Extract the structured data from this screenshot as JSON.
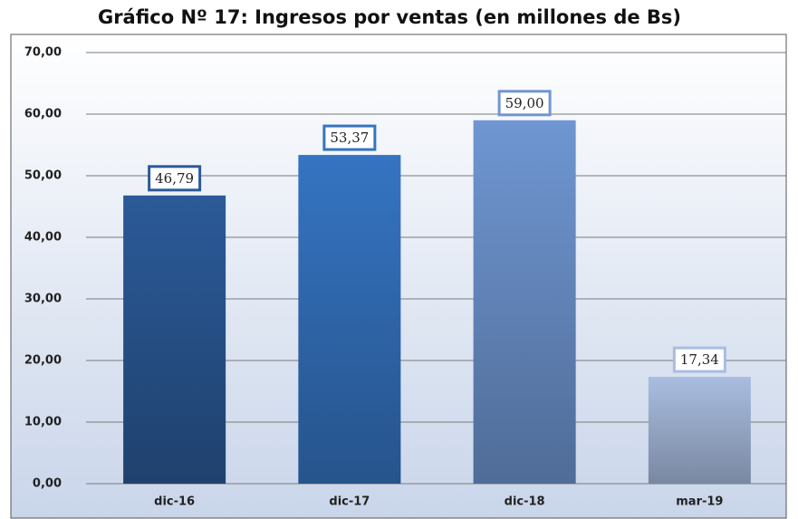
{
  "chart_data": {
    "type": "bar",
    "title": "Gráfico Nº 17: Ingresos por ventas (en millones de Bs)",
    "categories": [
      "dic-16",
      "dic-17",
      "dic-18",
      "mar-19"
    ],
    "values": [
      46.79,
      53.37,
      59.0,
      17.34
    ],
    "value_labels": [
      "46,79",
      "53,37",
      "59,00",
      "17,34"
    ],
    "colors": [
      "#2b5a98",
      "#3574c2",
      "#6f96d2",
      "#a9bde0"
    ],
    "ylim": [
      0,
      70
    ],
    "yticks": [
      {
        "value": 0,
        "label": "0,00"
      },
      {
        "value": 10,
        "label": "10,00"
      },
      {
        "value": 20,
        "label": "20,00"
      },
      {
        "value": 30,
        "label": "30,00"
      },
      {
        "value": 40,
        "label": "40,00"
      },
      {
        "value": 50,
        "label": "50,00"
      },
      {
        "value": 60,
        "label": "60,00"
      },
      {
        "value": 70,
        "label": "70,00"
      }
    ],
    "grid": true
  }
}
